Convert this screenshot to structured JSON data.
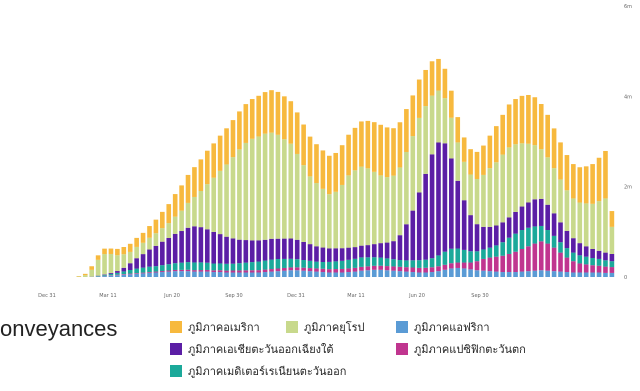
{
  "caption": "onveyances",
  "colors": {
    "americas": "#F7B93E",
    "europe": "#C8D98C",
    "africa": "#5A9BD5",
    "se_asia": "#5B1EA5",
    "w_pacific": "#C0358F",
    "e_med": "#1BA99A"
  },
  "legend": [
    {
      "label": "ภูมิภาคอเมริกา",
      "color": "#F7B93E"
    },
    {
      "label": "ภูมิภาคยุโรป",
      "color": "#C8D98C"
    },
    {
      "label": "ภูมิภาคแอฟริกา",
      "color": "#5A9BD5"
    },
    {
      "label": "ภูมิภาคเอเชียตะวันออกเฉียงใต้",
      "color": "#5B1EA5"
    },
    {
      "label": "ภูมิภาคแปซิฟิกตะวันตก",
      "color": "#C0358F"
    },
    {
      "label": "ภูมิภาคเมดิเตอร์เรเนียนตะวันออก",
      "color": "#1BA99A"
    }
  ],
  "chart_data": {
    "type": "bar",
    "stacked": true,
    "x_tick_labels": [
      "Dec 31",
      "Mar 11",
      "Jun 20",
      "Sep 30",
      "Dec 31",
      "Mar 11",
      "Jun 20",
      "Sep 30"
    ],
    "y_tick_labels": [
      "0",
      "2m",
      "4m",
      "6m"
    ],
    "ylim": [
      0,
      6000000
    ],
    "series": [
      {
        "name": "ภูมิภาคแอฟริกา",
        "values": [
          0,
          0,
          0,
          0,
          0,
          0,
          0,
          0,
          2000,
          10000,
          20000,
          30000,
          40000,
          50000,
          60000,
          70000,
          80000,
          90000,
          100000,
          110000,
          120000,
          130000,
          130000,
          130000,
          120000,
          120000,
          120000,
          110000,
          110000,
          100000,
          100000,
          100000,
          100000,
          100000,
          100000,
          110000,
          120000,
          130000,
          140000,
          150000,
          150000,
          140000,
          130000,
          120000,
          110000,
          100000,
          100000,
          100000,
          110000,
          120000,
          140000,
          150000,
          160000,
          160000,
          150000,
          140000,
          130000,
          120000,
          110000,
          100000,
          100000,
          110000,
          130000,
          160000,
          190000,
          200000,
          190000,
          170000,
          150000,
          140000,
          130000,
          120000,
          110000,
          110000,
          110000,
          120000,
          130000,
          140000,
          150000,
          140000,
          130000,
          120000,
          110000,
          100000,
          100000,
          100000,
          100000,
          100000,
          90000,
          90000
        ]
      },
      {
        "name": "ภูมิภาคแปซิฟิกตะวันตก",
        "values": [
          0,
          0,
          0,
          0,
          0,
          0,
          0,
          0,
          2000,
          5000,
          8000,
          10000,
          12000,
          14000,
          15000,
          16000,
          17000,
          18000,
          20000,
          22000,
          24000,
          26000,
          28000,
          30000,
          32000,
          34000,
          36000,
          38000,
          40000,
          42000,
          44000,
          46000,
          48000,
          50000,
          52000,
          54000,
          56000,
          58000,
          60000,
          62000,
          64000,
          66000,
          68000,
          70000,
          72000,
          74000,
          76000,
          78000,
          80000,
          82000,
          84000,
          86000,
          88000,
          90000,
          92000,
          94000,
          96000,
          98000,
          100000,
          102000,
          104000,
          106000,
          108000,
          110000,
          115000,
          120000,
          130000,
          150000,
          200000,
          260000,
          300000,
          330000,
          360000,
          400000,
          450000,
          500000,
          550000,
          600000,
          640000,
          600000,
          520000,
          420000,
          320000,
          250000,
          200000,
          180000,
          160000,
          150000,
          140000,
          130000
        ]
      },
      {
        "name": "ภูมิภาคเมดิเตอร์เรเนียนตะวันออก",
        "values": [
          0,
          0,
          0,
          0,
          0,
          0,
          0,
          0,
          2000,
          10000,
          20000,
          30000,
          40000,
          60000,
          80000,
          100000,
          110000,
          120000,
          120000,
          130000,
          140000,
          150000,
          160000,
          170000,
          170000,
          170000,
          160000,
          150000,
          150000,
          150000,
          150000,
          160000,
          170000,
          180000,
          190000,
          200000,
          210000,
          210000,
          200000,
          190000,
          180000,
          170000,
          160000,
          150000,
          150000,
          160000,
          170000,
          180000,
          190000,
          200000,
          210000,
          200000,
          190000,
          180000,
          170000,
          160000,
          150000,
          150000,
          160000,
          170000,
          180000,
          200000,
          240000,
          290000,
          320000,
          310000,
          280000,
          250000,
          220000,
          210000,
          220000,
          250000,
          300000,
          360000,
          400000,
          420000,
          410000,
          380000,
          340000,
          300000,
          260000,
          230000,
          210000,
          190000,
          180000,
          170000,
          160000,
          150000,
          140000,
          130000
        ]
      },
      {
        "name": "ภูมิภาคเอเชียตะวันออกเฉียงใต้",
        "values": [
          0,
          0,
          0,
          0,
          0,
          0,
          0,
          0,
          2000,
          5000,
          10000,
          20000,
          40000,
          80000,
          150000,
          230000,
          300000,
          380000,
          450000,
          520000,
          580000,
          650000,
          700000,
          760000,
          800000,
          780000,
          740000,
          700000,
          650000,
          600000,
          560000,
          520000,
          500000,
          480000,
          470000,
          460000,
          460000,
          450000,
          450000,
          450000,
          430000,
          400000,
          370000,
          340000,
          320000,
          300000,
          290000,
          280000,
          270000,
          260000,
          260000,
          270000,
          290000,
          320000,
          350000,
          400000,
          550000,
          800000,
          1100000,
          1500000,
          1900000,
          2300000,
          2500000,
          2400000,
          2000000,
          1500000,
          1100000,
          800000,
          600000,
          500000,
          460000,
          440000,
          440000,
          450000,
          480000,
          520000,
          560000,
          600000,
          600000,
          560000,
          500000,
          440000,
          380000,
          320000,
          270000,
          230000,
          200000,
          180000,
          170000,
          160000
        ]
      },
      {
        "name": "ภูมิภาคยุโรป",
        "values": [
          0,
          0,
          0,
          0,
          0,
          0,
          10000,
          40000,
          150000,
          350000,
          450000,
          420000,
          350000,
          300000,
          250000,
          250000,
          250000,
          260000,
          280000,
          300000,
          330000,
          380000,
          450000,
          550000,
          650000,
          800000,
          1000000,
          1200000,
          1400000,
          1600000,
          1800000,
          2000000,
          2150000,
          2250000,
          2300000,
          2350000,
          2350000,
          2300000,
          2200000,
          2100000,
          1900000,
          1700000,
          1500000,
          1400000,
          1300000,
          1200000,
          1250000,
          1400000,
          1600000,
          1700000,
          1750000,
          1700000,
          1600000,
          1500000,
          1450000,
          1450000,
          1500000,
          1600000,
          1650000,
          1650000,
          1500000,
          1300000,
          1150000,
          1000000,
          900000,
          850000,
          850000,
          900000,
          1000000,
          1150000,
          1300000,
          1400000,
          1500000,
          1550000,
          1500000,
          1400000,
          1300000,
          1200000,
          1100000,
          1050000,
          1000000,
          950000,
          900000,
          880000,
          900000,
          950000,
          1000000,
          1100000,
          1200000,
          600000
        ]
      },
      {
        "name": "ภูมิภาคอเมริกา",
        "values": [
          0,
          0,
          0,
          0,
          0,
          0,
          10000,
          30000,
          80000,
          100000,
          120000,
          120000,
          140000,
          160000,
          180000,
          200000,
          220000,
          260000,
          300000,
          360000,
          420000,
          500000,
          560000,
          620000,
          660000,
          700000,
          740000,
          760000,
          780000,
          800000,
          820000,
          840000,
          860000,
          880000,
          900000,
          920000,
          940000,
          950000,
          950000,
          940000,
          920000,
          900000,
          880000,
          860000,
          850000,
          850000,
          860000,
          880000,
          900000,
          940000,
          1000000,
          1050000,
          1100000,
          1120000,
          1100000,
          1050000,
          1000000,
          950000,
          900000,
          850000,
          800000,
          760000,
          700000,
          650000,
          600000,
          560000,
          540000,
          560000,
          600000,
          650000,
          720000,
          800000,
          880000,
          950000,
          1000000,
          1050000,
          1080000,
          1060000,
          1000000,
          940000,
          880000,
          820000,
          780000,
          760000,
          780000,
          820000,
          880000,
          960000,
          1050000,
          350000
        ]
      }
    ]
  }
}
